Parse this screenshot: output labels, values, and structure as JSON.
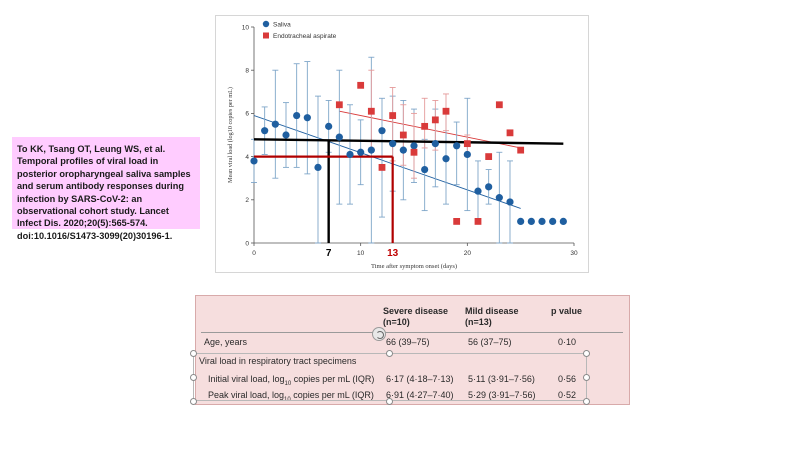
{
  "citation": "To KK, Tsang OT, Leung WS, et al. Temporal profiles of viral load in posterior oropharyngeal saliva samples and serum antibody responses during infection by SARS-CoV-2: an observational cohort study. Lancet Infect Dis. 2020;20(5):565-574. doi:10.1016/S1473-3099(20)30196-1.",
  "chart_data": {
    "type": "scatter",
    "xlabel": "Time after symptom onset (days)",
    "ylabel": "Mean viral load (log10 copies per mL)",
    "xlim": [
      0,
      30
    ],
    "ylim": [
      0,
      10
    ],
    "x_ticks": [
      "0",
      "10",
      "20",
      "30"
    ],
    "y_ticks": [
      "0",
      "2",
      "4",
      "6",
      "8",
      "10"
    ],
    "legend_position": "top-left",
    "series": [
      {
        "name": "Saliva",
        "color": "#1f5fa0",
        "marker": "circle",
        "points": [
          {
            "x": 0,
            "y": 3.8,
            "lo": 2.8,
            "hi": 4.8
          },
          {
            "x": 1,
            "y": 5.2,
            "lo": 4.1,
            "hi": 6.3
          },
          {
            "x": 2,
            "y": 5.5,
            "lo": 3.0,
            "hi": 8.0
          },
          {
            "x": 3,
            "y": 5.0,
            "lo": 3.5,
            "hi": 6.5
          },
          {
            "x": 4,
            "y": 5.9,
            "lo": 3.5,
            "hi": 8.3
          },
          {
            "x": 5,
            "y": 5.8,
            "lo": 3.2,
            "hi": 8.4
          },
          {
            "x": 6,
            "y": 3.5,
            "lo": 0.0,
            "hi": 6.8
          },
          {
            "x": 7,
            "y": 5.4,
            "lo": 4.2,
            "hi": 6.6
          },
          {
            "x": 8,
            "y": 4.9,
            "lo": 1.8,
            "hi": 8.0
          },
          {
            "x": 9,
            "y": 4.1,
            "lo": 1.8,
            "hi": 6.4
          },
          {
            "x": 10,
            "y": 4.2,
            "lo": 2.7,
            "hi": 5.7
          },
          {
            "x": 11,
            "y": 4.3,
            "lo": 0.0,
            "hi": 8.6
          },
          {
            "x": 12,
            "y": 5.2,
            "lo": 1.2,
            "hi": 6.7
          },
          {
            "x": 13,
            "y": 4.6,
            "lo": 2.4,
            "hi": 6.8
          },
          {
            "x": 14,
            "y": 4.3,
            "lo": 2.0,
            "hi": 6.6
          },
          {
            "x": 15,
            "y": 4.5,
            "lo": 2.8,
            "hi": 6.2
          },
          {
            "x": 16,
            "y": 3.4,
            "lo": 1.5,
            "hi": 4.8
          },
          {
            "x": 17,
            "y": 4.6,
            "lo": 2.6,
            "hi": 6.2
          },
          {
            "x": 18,
            "y": 3.9,
            "lo": 1.8,
            "hi": 6.0
          },
          {
            "x": 19,
            "y": 4.5,
            "lo": 2.7,
            "hi": 5.6
          },
          {
            "x": 20,
            "y": 4.1,
            "lo": 1.5,
            "hi": 6.7
          },
          {
            "x": 21,
            "y": 2.4,
            "lo": 1.0,
            "hi": 3.8
          },
          {
            "x": 22,
            "y": 2.6,
            "lo": 1.8,
            "hi": 3.4
          },
          {
            "x": 23,
            "y": 2.1,
            "lo": 0.0,
            "hi": 4.2
          },
          {
            "x": 24,
            "y": 1.9,
            "lo": 0.0,
            "hi": 3.8
          },
          {
            "x": 25,
            "y": 1.0
          },
          {
            "x": 26,
            "y": 1.0
          },
          {
            "x": 27,
            "y": 1.0
          },
          {
            "x": 28,
            "y": 1.0
          },
          {
            "x": 29,
            "y": 1.0
          }
        ],
        "trend": {
          "x": [
            0,
            25
          ],
          "y": [
            5.9,
            1.6
          ]
        }
      },
      {
        "name": "Endotracheal aspirate",
        "color": "#d93a3a",
        "marker": "square",
        "points": [
          {
            "x": 8,
            "y": 6.4
          },
          {
            "x": 10,
            "y": 7.3
          },
          {
            "x": 11,
            "y": 6.1,
            "lo": 4.4,
            "hi": 8.0
          },
          {
            "x": 12,
            "y": 3.5
          },
          {
            "x": 13,
            "y": 5.9,
            "lo": 3.8,
            "hi": 7.2
          },
          {
            "x": 14,
            "y": 5.0,
            "lo": 3.6,
            "hi": 6.4
          },
          {
            "x": 15,
            "y": 4.2,
            "lo": 3.0,
            "hi": 6.0
          },
          {
            "x": 16,
            "y": 5.4,
            "lo": 4.4,
            "hi": 6.7
          },
          {
            "x": 17,
            "y": 5.7,
            "lo": 4.3,
            "hi": 6.6
          },
          {
            "x": 18,
            "y": 6.1,
            "lo": 5.2,
            "hi": 6.9
          },
          {
            "x": 19,
            "y": 1.0
          },
          {
            "x": 20,
            "y": 4.6,
            "lo": 4.0,
            "hi": 5.0
          },
          {
            "x": 21,
            "y": 1.0
          },
          {
            "x": 22,
            "y": 4.0
          },
          {
            "x": 23,
            "y": 6.4
          },
          {
            "x": 24,
            "y": 5.1
          },
          {
            "x": 25,
            "y": 4.3
          }
        ],
        "trend": {
          "x": [
            8,
            25
          ],
          "y": [
            6.1,
            4.4
          ]
        }
      }
    ],
    "annotations": {
      "black_line": {
        "x": [
          0,
          29
        ],
        "y": [
          4.8,
          4.6
        ],
        "drop_x": 7
      },
      "red_line": {
        "x": [
          0,
          13
        ],
        "y": [
          4.0,
          4.0
        ],
        "drop_x": 13
      },
      "labels": [
        {
          "text": "7",
          "x": 7,
          "color": "#000000"
        },
        {
          "text": "13",
          "x": 13,
          "color": "#c00000"
        }
      ]
    }
  },
  "table": {
    "columns": [
      "",
      "Severe disease (n=10)",
      "Mild disease (n=13)",
      "p value"
    ],
    "headers": {
      "severe_l1": "Severe disease",
      "severe_l2": "(n=10)",
      "mild_l1": "Mild disease",
      "mild_l2": "(n=13)",
      "p": "p value"
    },
    "rows": [
      {
        "label": "Age, years",
        "severe": "66 (39–75)",
        "mild": "56 (37–75)",
        "p": "0·10"
      }
    ],
    "section_title": "Viral load in respiratory tract specimens",
    "sub_rows": [
      {
        "label_pre": "Initial viral load, log",
        "label_sub": "10",
        "label_post": " copies per mL (IQR)",
        "severe": "6·17 (4·18–7·13)",
        "mild": "5·11 (3·91–7·56)",
        "p": "0·56"
      },
      {
        "label_pre": "Peak viral load, log",
        "label_sub": "10",
        "label_post": " copies per mL (IQR)",
        "severe": "6·91 (4·27–7·40)",
        "mild": "5·29 (3·91–7·56)",
        "p": "0·52"
      }
    ]
  }
}
